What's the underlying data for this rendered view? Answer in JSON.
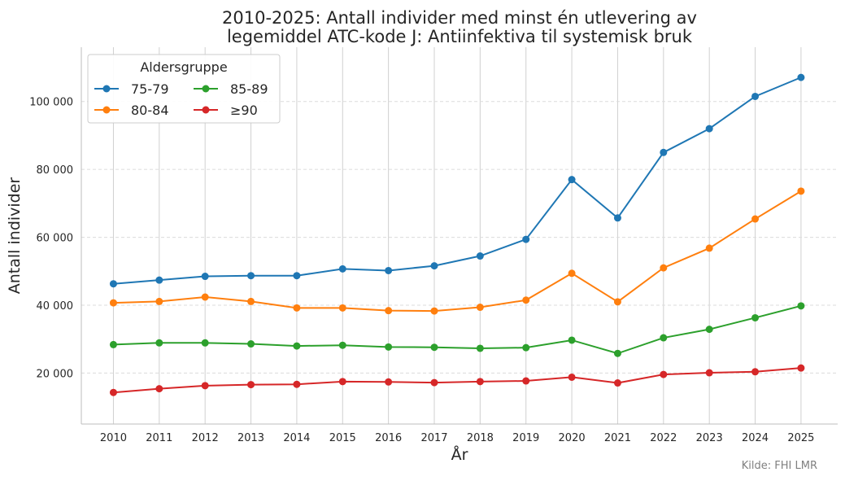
{
  "chart_data": {
    "type": "line",
    "title_line1": "2010-2025: Antall individer med minst én utlevering av",
    "title_line2": "legemiddel ATC-kode J: Antiinfektiva til systemisk bruk",
    "xlabel": "År",
    "ylabel": "Antall individer",
    "x": [
      2010,
      2011,
      2012,
      2013,
      2014,
      2015,
      2016,
      2017,
      2018,
      2019,
      2020,
      2021,
      2022,
      2023,
      2024,
      2025
    ],
    "ylim": [
      5000,
      116000
    ],
    "yticks": [
      20000,
      40000,
      60000,
      80000,
      100000
    ],
    "ytick_labels": [
      "20 000",
      "40 000",
      "60 000",
      "80 000",
      "100 000"
    ],
    "grid": "x solid, y dashed",
    "legend": {
      "title": "Aldersgruppe",
      "placement": "top-left",
      "columns": 2
    },
    "series": [
      {
        "name": "75-79",
        "color": "#1f77b4",
        "values": [
          46300,
          47400,
          48500,
          48700,
          48700,
          50700,
          50200,
          51600,
          54500,
          59400,
          77000,
          65700,
          85000,
          92000,
          101500,
          107100
        ]
      },
      {
        "name": "80-84",
        "color": "#ff7f0e",
        "values": [
          40700,
          41100,
          42400,
          41100,
          39200,
          39200,
          38400,
          38300,
          39400,
          41500,
          49400,
          41000,
          51000,
          56800,
          65400,
          73600
        ]
      },
      {
        "name": "85-89",
        "color": "#2ca02c",
        "values": [
          28400,
          28900,
          28900,
          28600,
          28000,
          28200,
          27700,
          27600,
          27300,
          27500,
          29700,
          25800,
          30400,
          32900,
          36300,
          39800
        ]
      },
      {
        "name": "≥90",
        "color": "#d62728",
        "values": [
          14300,
          15400,
          16300,
          16600,
          16700,
          17500,
          17400,
          17200,
          17500,
          17700,
          18800,
          17100,
          19600,
          20100,
          20400,
          21500
        ]
      }
    ],
    "source": "Kilde: FHI LMR"
  }
}
